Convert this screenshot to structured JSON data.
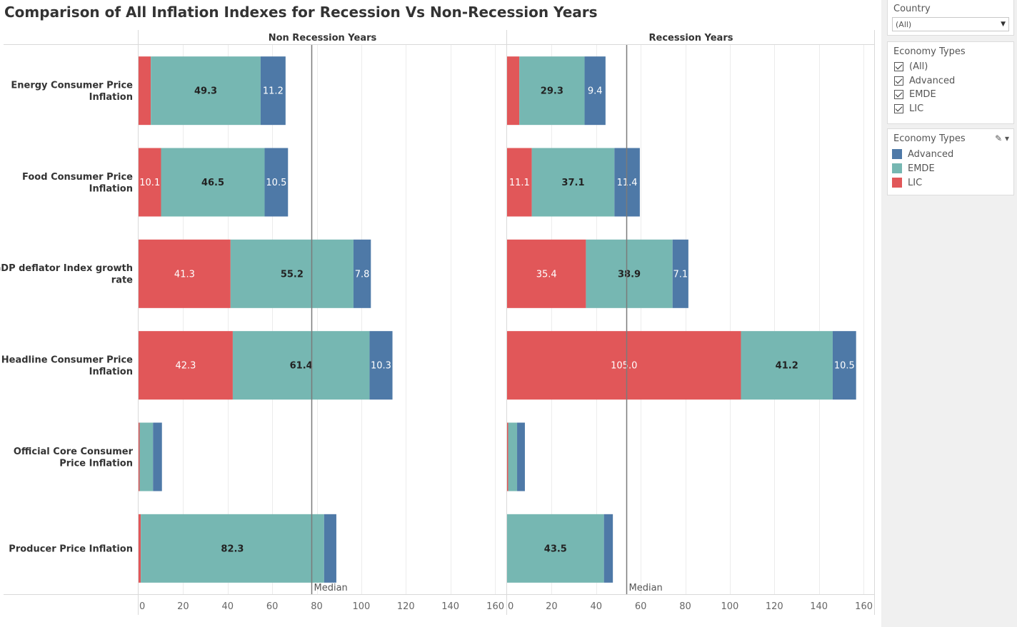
{
  "chart_data": {
    "type": "bar",
    "orientation": "horizontal",
    "stacked": true,
    "title": "Comparison of All Inflation Indexes for Recession Vs Non-Recession Years",
    "categories": [
      [
        "Energy Consumer Price",
        "Inflation"
      ],
      [
        "Food Consumer Price",
        "Inflation"
      ],
      [
        "GDP deflator Index growth",
        "rate"
      ],
      [
        "Headline Consumer Price",
        "Inflation"
      ],
      [
        "Official Core Consumer",
        "Price Inflation"
      ],
      [
        "Producer Price Inflation"
      ]
    ],
    "xlim": [
      0,
      160
    ],
    "xticks": [
      0,
      20,
      40,
      60,
      80,
      100,
      120,
      140,
      160
    ],
    "grid": true,
    "panels": [
      {
        "name": "Non Recession Years",
        "median": 77.5,
        "median_label": "Median",
        "series": [
          {
            "name": "LIC",
            "values": [
              5.5,
              10.1,
              41.3,
              42.3,
              0.5,
              1.0
            ],
            "labels": [
              null,
              "10.1",
              "41.3",
              "42.3",
              null,
              null
            ]
          },
          {
            "name": "EMDE",
            "values": [
              49.3,
              46.5,
              55.2,
              61.4,
              6.0,
              82.3
            ],
            "labels": [
              "49.3",
              "46.5",
              "55.2",
              "61.4",
              null,
              "82.3"
            ]
          },
          {
            "name": "Advanced",
            "values": [
              11.2,
              10.5,
              7.8,
              10.3,
              4.0,
              5.5
            ],
            "labels": [
              "11.2",
              "10.5",
              "7.8",
              "10.3",
              null,
              null
            ]
          }
        ]
      },
      {
        "name": "Recession Years",
        "median": 53.5,
        "median_label": "Median",
        "series": [
          {
            "name": "LIC",
            "values": [
              5.5,
              11.1,
              35.4,
              105.0,
              0.5,
              0.0
            ],
            "labels": [
              null,
              "11.1",
              "35.4",
              "105.0",
              null,
              null
            ]
          },
          {
            "name": "EMDE",
            "values": [
              29.3,
              37.1,
              38.9,
              41.2,
              4.0,
              43.5
            ],
            "labels": [
              "29.3",
              "37.1",
              "38.9",
              "41.2",
              null,
              "43.5"
            ]
          },
          {
            "name": "Advanced",
            "values": [
              9.4,
              11.4,
              7.1,
              10.5,
              3.5,
              4.0
            ],
            "labels": [
              "9.4",
              "11.4",
              "7.1",
              "10.5",
              null,
              null
            ]
          }
        ]
      }
    ],
    "legend": {
      "position": "right",
      "entries": [
        {
          "name": "Advanced",
          "color": "#4e79a7"
        },
        {
          "name": "EMDE",
          "color": "#76b7b2"
        },
        {
          "name": "LIC",
          "color": "#e15759"
        }
      ]
    },
    "colors": {
      "LIC": "#e15759",
      "EMDE": "#76b7b2",
      "Advanced": "#4e79a7"
    }
  },
  "filters": {
    "country": {
      "title": "Country",
      "selected": "(All)"
    },
    "economy_types": {
      "title": "Economy Types",
      "options": [
        {
          "label": "(All)",
          "checked": true
        },
        {
          "label": "Advanced",
          "checked": true
        },
        {
          "label": "EMDE",
          "checked": true
        },
        {
          "label": "LIC",
          "checked": true
        }
      ]
    }
  },
  "legend_card": {
    "title": "Economy Types",
    "items": [
      {
        "label": "Advanced",
        "color": "#4e79a7"
      },
      {
        "label": "EMDE",
        "color": "#76b7b2"
      },
      {
        "label": "LIC",
        "color": "#e15759"
      }
    ]
  }
}
